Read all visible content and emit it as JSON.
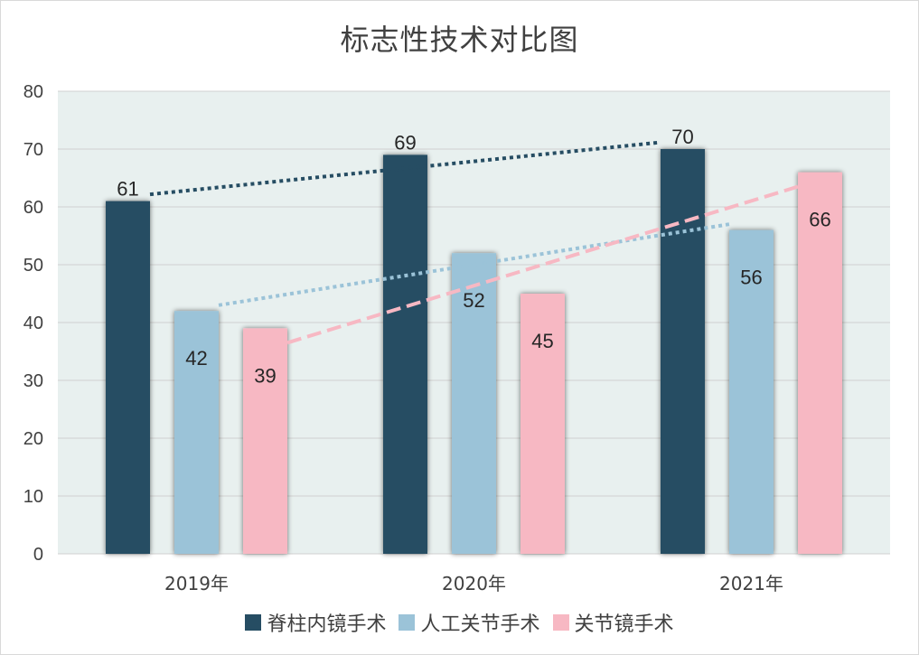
{
  "chart_data": {
    "type": "bar",
    "title": "标志性技术对比图",
    "categories": [
      "2019年",
      "2020年",
      "2021年"
    ],
    "series": [
      {
        "name": "脊柱内镜手术",
        "values": [
          61,
          69,
          70
        ],
        "color": "#264d63"
      },
      {
        "name": "人工关节手术",
        "values": [
          42,
          52,
          56
        ],
        "color": "#9bc3d8"
      },
      {
        "name": "关节镜手术",
        "values": [
          39,
          45,
          66
        ],
        "color": "#f7b8c3"
      }
    ],
    "ylim": [
      0,
      80
    ],
    "yticks": [
      0,
      10,
      20,
      30,
      40,
      50,
      60,
      70,
      80
    ],
    "xlabel": "",
    "ylabel": "",
    "grid": true,
    "plot_background": "#e8f0ef",
    "trendlines": true,
    "legend_position": "bottom",
    "data_label_position": {
      "脊柱内镜手术": "outside-end",
      "人工关节手术": "inside-end",
      "关节镜手术": "inside-end"
    }
  }
}
